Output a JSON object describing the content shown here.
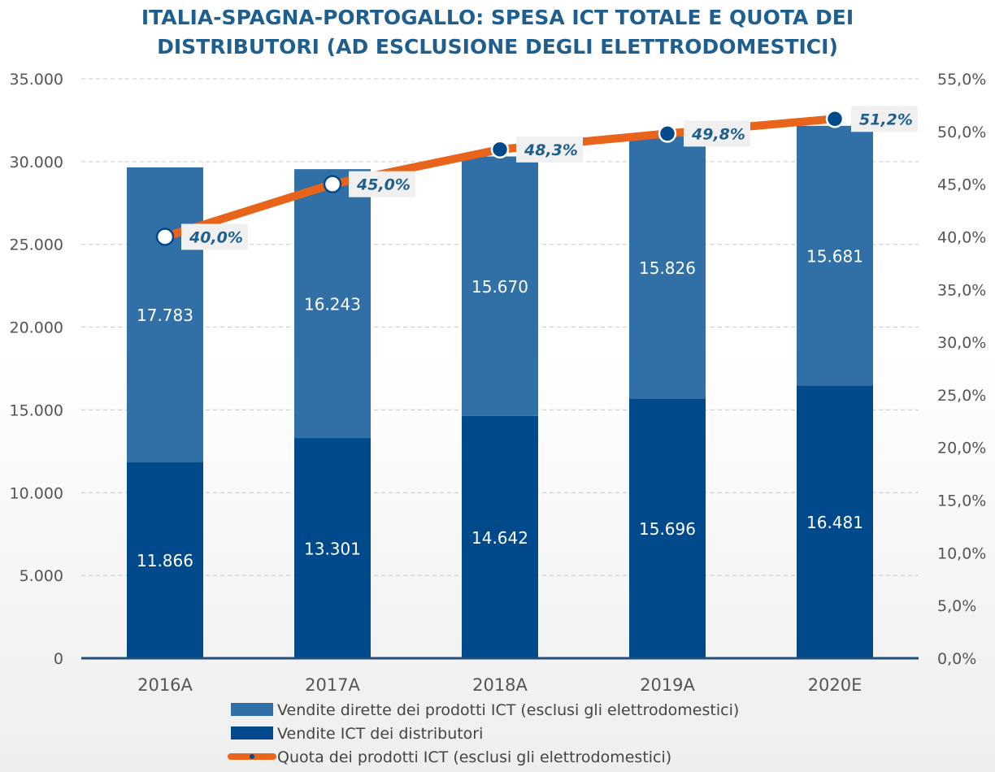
{
  "chart_data": {
    "type": "bar",
    "stacked": true,
    "title": [
      "ITALIA-SPAGNA-PORTOGALLO: SPESA ICT TOTALE E QUOTA DEI",
      "DISTRIBUTORI (AD ESCLUSIONE DEGLI ELETTRODOMESTICI)"
    ],
    "categories": [
      "2016A",
      "2017A",
      "2018A",
      "2019A",
      "2020E"
    ],
    "series": [
      {
        "name": "Vendite ICT dei distributori",
        "type": "bar",
        "axis": "left",
        "color": "#004a8c",
        "values": [
          11866,
          13301,
          14642,
          15696,
          16481
        ],
        "labels": [
          "11.866",
          "13.301",
          "14.642",
          "15.696",
          "16.481"
        ]
      },
      {
        "name": "Vendite dirette dei prodotti ICT (esclusi gli elettrodomestici)",
        "type": "bar",
        "axis": "left",
        "color": "#3070a6",
        "values": [
          17783,
          16243,
          15670,
          15826,
          15681
        ],
        "labels": [
          "17.783",
          "16.243",
          "15.670",
          "15.826",
          "15.681"
        ]
      },
      {
        "name": "Quota dei prodotti ICT (esclusi gli elettrodomestici)",
        "type": "line",
        "axis": "right",
        "color": "#e8641b",
        "values": [
          40.0,
          45.0,
          48.3,
          49.8,
          51.2
        ],
        "labels": [
          "40,0%",
          "45,0%",
          "48,3%",
          "49,8%",
          "51,2%"
        ]
      }
    ],
    "y_left": {
      "range": [
        0,
        35000
      ],
      "ticks": [
        "0",
        "5.000",
        "10.000",
        "15.000",
        "20.000",
        "25.000",
        "30.000",
        "35.000"
      ]
    },
    "y_right": {
      "range": [
        0,
        55
      ],
      "ticks": [
        "0,0%",
        "5,0%",
        "10,0%",
        "15,0%",
        "20,0%",
        "25,0%",
        "30,0%",
        "35,0%",
        "40,0%",
        "45,0%",
        "50,0%",
        "55,0%"
      ]
    },
    "grid": true,
    "legend_position": "bottom"
  }
}
